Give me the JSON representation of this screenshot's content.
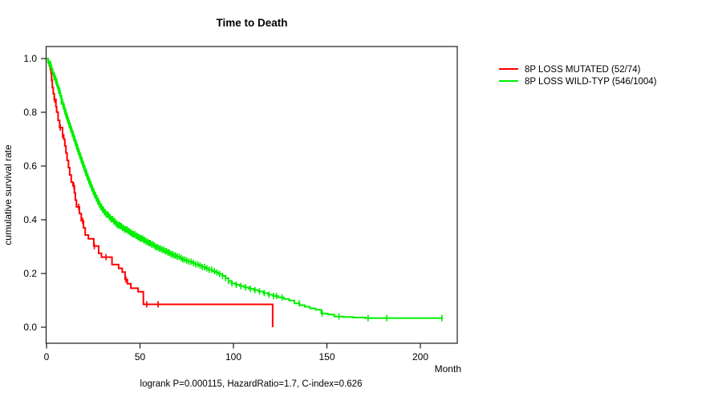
{
  "figure": {
    "background": "#ffffff",
    "frame_color": "#1a1a1a"
  },
  "chart_data": {
    "type": "line",
    "subtype": "kaplan-meier-step",
    "title": "Time to Death",
    "xlabel": "Month",
    "ylabel": "cumulative survival rate",
    "annotation": "logrank P=0.000115, HazardRatio=1.7, C-index=0.626",
    "xlim": [
      0,
      220
    ],
    "ylim": [
      0,
      1.0
    ],
    "xticks": [
      0,
      50,
      100,
      150,
      200
    ],
    "yticks": [
      0.0,
      0.2,
      0.4,
      0.6,
      0.8,
      1.0
    ],
    "grid": false,
    "legend_position": "right-outside",
    "series": [
      {
        "name": "8P LOSS MUTATED (52/74)",
        "color": "#ff0000",
        "steps": [
          [
            0,
            1.0
          ],
          [
            0.8,
            0.987
          ],
          [
            1.5,
            0.973
          ],
          [
            2.0,
            0.959
          ],
          [
            2.4,
            0.946
          ],
          [
            2.7,
            0.919
          ],
          [
            3.1,
            0.892
          ],
          [
            3.6,
            0.869
          ],
          [
            4.1,
            0.848
          ],
          [
            5.0,
            0.821
          ],
          [
            5.4,
            0.801
          ],
          [
            6.2,
            0.77
          ],
          [
            7.0,
            0.743
          ],
          [
            8.6,
            0.716
          ],
          [
            9.2,
            0.7
          ],
          [
            9.8,
            0.675
          ],
          [
            10.4,
            0.648
          ],
          [
            11.0,
            0.621
          ],
          [
            11.7,
            0.594
          ],
          [
            12.4,
            0.567
          ],
          [
            13.2,
            0.54
          ],
          [
            14.1,
            0.527
          ],
          [
            14.9,
            0.5
          ],
          [
            15.4,
            0.473
          ],
          [
            16.0,
            0.448
          ],
          [
            17.6,
            0.423
          ],
          [
            18.6,
            0.396
          ],
          [
            19.8,
            0.37
          ],
          [
            20.7,
            0.343
          ],
          [
            22.4,
            0.329
          ],
          [
            25.3,
            0.302
          ],
          [
            27.9,
            0.275
          ],
          [
            29.4,
            0.261
          ],
          [
            35.0,
            0.233
          ],
          [
            38.6,
            0.219
          ],
          [
            40.5,
            0.205
          ],
          [
            42.0,
            0.178
          ],
          [
            43.2,
            0.162
          ],
          [
            45.1,
            0.145
          ],
          [
            49.0,
            0.132
          ],
          [
            51.8,
            0.085
          ],
          [
            121,
            0.085
          ],
          [
            121,
            0.0
          ]
        ],
        "censor_months": [
          4.3,
          7.4,
          8.6,
          14.6,
          17.2,
          19.3,
          25.6,
          31.8,
          42.5,
          53.6,
          59.7
        ]
      },
      {
        "name": "8P LOSS WILD-TYP (546/1004)",
        "color": "#00ee00",
        "steps": [
          [
            0,
            1.0
          ],
          [
            0.8,
            0.99
          ],
          [
            1.6,
            0.978
          ],
          [
            2.4,
            0.962
          ],
          [
            3.2,
            0.948
          ],
          [
            4.0,
            0.932
          ],
          [
            4.8,
            0.915
          ],
          [
            5.6,
            0.898
          ],
          [
            6.4,
            0.881
          ],
          [
            7.2,
            0.862
          ],
          [
            8.0,
            0.84
          ],
          [
            8.8,
            0.822
          ],
          [
            9.6,
            0.804
          ],
          [
            10.4,
            0.786
          ],
          [
            11.2,
            0.769
          ],
          [
            12.0,
            0.752
          ],
          [
            12.8,
            0.736
          ],
          [
            13.6,
            0.72
          ],
          [
            14.4,
            0.704
          ],
          [
            15.2,
            0.687
          ],
          [
            16.0,
            0.67
          ],
          [
            16.8,
            0.654
          ],
          [
            17.6,
            0.638
          ],
          [
            18.4,
            0.622
          ],
          [
            19.2,
            0.606
          ],
          [
            20.0,
            0.59
          ],
          [
            20.8,
            0.575
          ],
          [
            21.6,
            0.56
          ],
          [
            22.4,
            0.545
          ],
          [
            23.2,
            0.531
          ],
          [
            24.0,
            0.517
          ],
          [
            24.8,
            0.504
          ],
          [
            25.6,
            0.492
          ],
          [
            26.4,
            0.48
          ],
          [
            27.2,
            0.469
          ],
          [
            28.0,
            0.458
          ],
          [
            29.0,
            0.447
          ],
          [
            30.0,
            0.437
          ],
          [
            31.0,
            0.428
          ],
          [
            32.0,
            0.419
          ],
          [
            33.2,
            0.41
          ],
          [
            34.4,
            0.402
          ],
          [
            35.6,
            0.394
          ],
          [
            36.8,
            0.387
          ],
          [
            38.0,
            0.38
          ],
          [
            39.2,
            0.376
          ],
          [
            40.4,
            0.37
          ],
          [
            41.8,
            0.364
          ],
          [
            43.2,
            0.358
          ],
          [
            44.6,
            0.352
          ],
          [
            46.0,
            0.346
          ],
          [
            47.4,
            0.34
          ],
          [
            48.8,
            0.335
          ],
          [
            50.2,
            0.33
          ],
          [
            51.6,
            0.324
          ],
          [
            53.0,
            0.318
          ],
          [
            54.4,
            0.313
          ],
          [
            55.8,
            0.308
          ],
          [
            57.2,
            0.303
          ],
          [
            58.6,
            0.298
          ],
          [
            60.0,
            0.293
          ],
          [
            61.6,
            0.288
          ],
          [
            63.2,
            0.283
          ],
          [
            64.8,
            0.278
          ],
          [
            66.4,
            0.272
          ],
          [
            68.0,
            0.267
          ],
          [
            69.6,
            0.262
          ],
          [
            71.2,
            0.257
          ],
          [
            72.8,
            0.252
          ],
          [
            74.4,
            0.248
          ],
          [
            76.0,
            0.244
          ],
          [
            77.8,
            0.239
          ],
          [
            79.6,
            0.234
          ],
          [
            81.4,
            0.229
          ],
          [
            83.2,
            0.224
          ],
          [
            85.0,
            0.219
          ],
          [
            86.8,
            0.214
          ],
          [
            88.6,
            0.209
          ],
          [
            90.4,
            0.204
          ],
          [
            92.2,
            0.198
          ],
          [
            94.0,
            0.191
          ],
          [
            95.8,
            0.183
          ],
          [
            97.4,
            0.172
          ],
          [
            99.0,
            0.163
          ],
          [
            101.0,
            0.158
          ],
          [
            103.4,
            0.153
          ],
          [
            105.8,
            0.148
          ],
          [
            108.2,
            0.143
          ],
          [
            110.8,
            0.138
          ],
          [
            113.4,
            0.133
          ],
          [
            116.0,
            0.127
          ],
          [
            118.6,
            0.121
          ],
          [
            121.2,
            0.116
          ],
          [
            124.0,
            0.111
          ],
          [
            127.0,
            0.105
          ],
          [
            129.8,
            0.099
          ],
          [
            132.6,
            0.089
          ],
          [
            135.4,
            0.082
          ],
          [
            138.2,
            0.076
          ],
          [
            141.0,
            0.07
          ],
          [
            144.0,
            0.065
          ],
          [
            147.0,
            0.051
          ],
          [
            150.5,
            0.047
          ],
          [
            154.0,
            0.04
          ],
          [
            158.5,
            0.038
          ],
          [
            164.0,
            0.036
          ],
          [
            170.5,
            0.034
          ],
          [
            212,
            0.034
          ]
        ],
        "censor_months": [
          1.0,
          1.6,
          2.2,
          2.8,
          3.4,
          4.0,
          4.5,
          5.0,
          5.5,
          6.0,
          6.5,
          7.0,
          7.5,
          8.0,
          8.5,
          9.0,
          9.4,
          9.8,
          10.2,
          10.6,
          11.0,
          11.4,
          11.8,
          12.2,
          12.6,
          13.0,
          13.4,
          13.8,
          14.2,
          14.6,
          15.0,
          15.4,
          15.8,
          16.2,
          16.6,
          17.0,
          17.4,
          17.8,
          18.2,
          18.6,
          19.0,
          19.4,
          19.8,
          20.2,
          20.6,
          21.0,
          21.4,
          21.8,
          22.2,
          22.6,
          23.0,
          23.4,
          23.8,
          24.2,
          24.6,
          25.0,
          25.4,
          25.8,
          26.2,
          26.6,
          27.0,
          27.4,
          27.8,
          28.2,
          28.6,
          29.0,
          29.5,
          30.0,
          30.5,
          31.0,
          31.5,
          32.0,
          32.5,
          33.0,
          33.5,
          34.0,
          34.5,
          35.0,
          35.5,
          36.0,
          36.5,
          37.0,
          37.5,
          38.0,
          38.5,
          39.0,
          39.5,
          40.0,
          40.6,
          41.2,
          41.8,
          42.4,
          43.0,
          43.6,
          44.2,
          44.8,
          45.4,
          46.0,
          46.6,
          47.2,
          47.8,
          48.4,
          49.0,
          49.6,
          50.2,
          50.8,
          51.4,
          52.0,
          52.7,
          53.4,
          54.1,
          54.8,
          55.5,
          56.2,
          57.0,
          57.8,
          58.6,
          59.4,
          60.2,
          61.0,
          61.8,
          62.6,
          63.4,
          64.2,
          65.0,
          65.8,
          66.6,
          67.4,
          68.2,
          69.0,
          70.0,
          71.0,
          72.0,
          73.0,
          74.0,
          75.0,
          76.2,
          77.4,
          78.6,
          79.8,
          81.0,
          82.2,
          83.4,
          84.6,
          85.8,
          87.0,
          88.4,
          89.8,
          91.2,
          92.6,
          94.2,
          95.8,
          97.4,
          99.2,
          101.5,
          104.0,
          106.5,
          109.0,
          111.5,
          114.0,
          116.5,
          119.0,
          121.5,
          123.0,
          126.0,
          135.2,
          147.5,
          156.5,
          172.0,
          182.0,
          211.5
        ]
      }
    ]
  }
}
